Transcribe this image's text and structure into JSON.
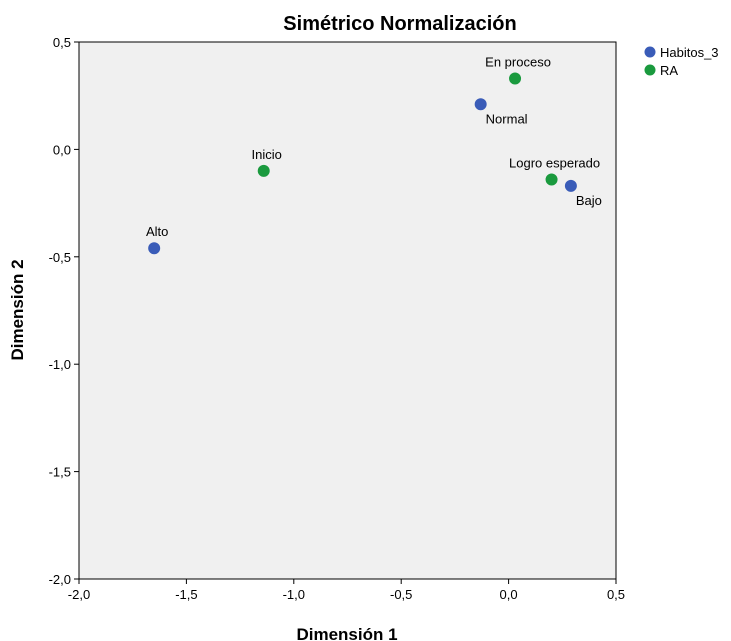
{
  "chart_data": {
    "type": "scatter",
    "title": "Simétrico Normalización",
    "xlabel": "Dimensión 1",
    "ylabel": "Dimensión 2",
    "xlim": [
      -2.0,
      0.5
    ],
    "ylim": [
      -2.0,
      0.5
    ],
    "xticks": [
      -2.0,
      -1.5,
      -1.0,
      -0.5,
      0.0,
      0.5
    ],
    "xtick_labels": [
      "-2,0",
      "-1,5",
      "-1,0",
      "-0,5",
      "0,0",
      "0,5"
    ],
    "yticks": [
      0.5,
      0.0,
      -0.5,
      -1.0,
      -1.5,
      -2.0
    ],
    "ytick_labels": [
      "0,5",
      "0,0",
      "-0,5",
      "-1,0",
      "-1,5",
      "-2,0"
    ],
    "grid": false,
    "legend_position": "top-right outside",
    "series": [
      {
        "name": "Habitos_3",
        "color": "#3a5cb8",
        "points": [
          {
            "label": "Alto",
            "x": -1.65,
            "y": -0.46,
            "label_pos": "above"
          },
          {
            "label": "Normal",
            "x": -0.13,
            "y": 0.21,
            "label_pos": "below"
          },
          {
            "label": "Bajo",
            "x": 0.29,
            "y": -0.17,
            "label_pos": "below"
          }
        ]
      },
      {
        "name": "RA",
        "color": "#1a9a3e",
        "points": [
          {
            "label": "Inicio",
            "x": -1.14,
            "y": -0.1,
            "label_pos": "above"
          },
          {
            "label": "En proceso",
            "x": 0.03,
            "y": 0.33,
            "label_pos": "above"
          },
          {
            "label": "Logro esperado",
            "x": 0.2,
            "y": -0.14,
            "label_pos": "above"
          }
        ]
      }
    ]
  },
  "colors": {
    "plot_background": "#f0f0f0",
    "axis_line": "#000000"
  }
}
